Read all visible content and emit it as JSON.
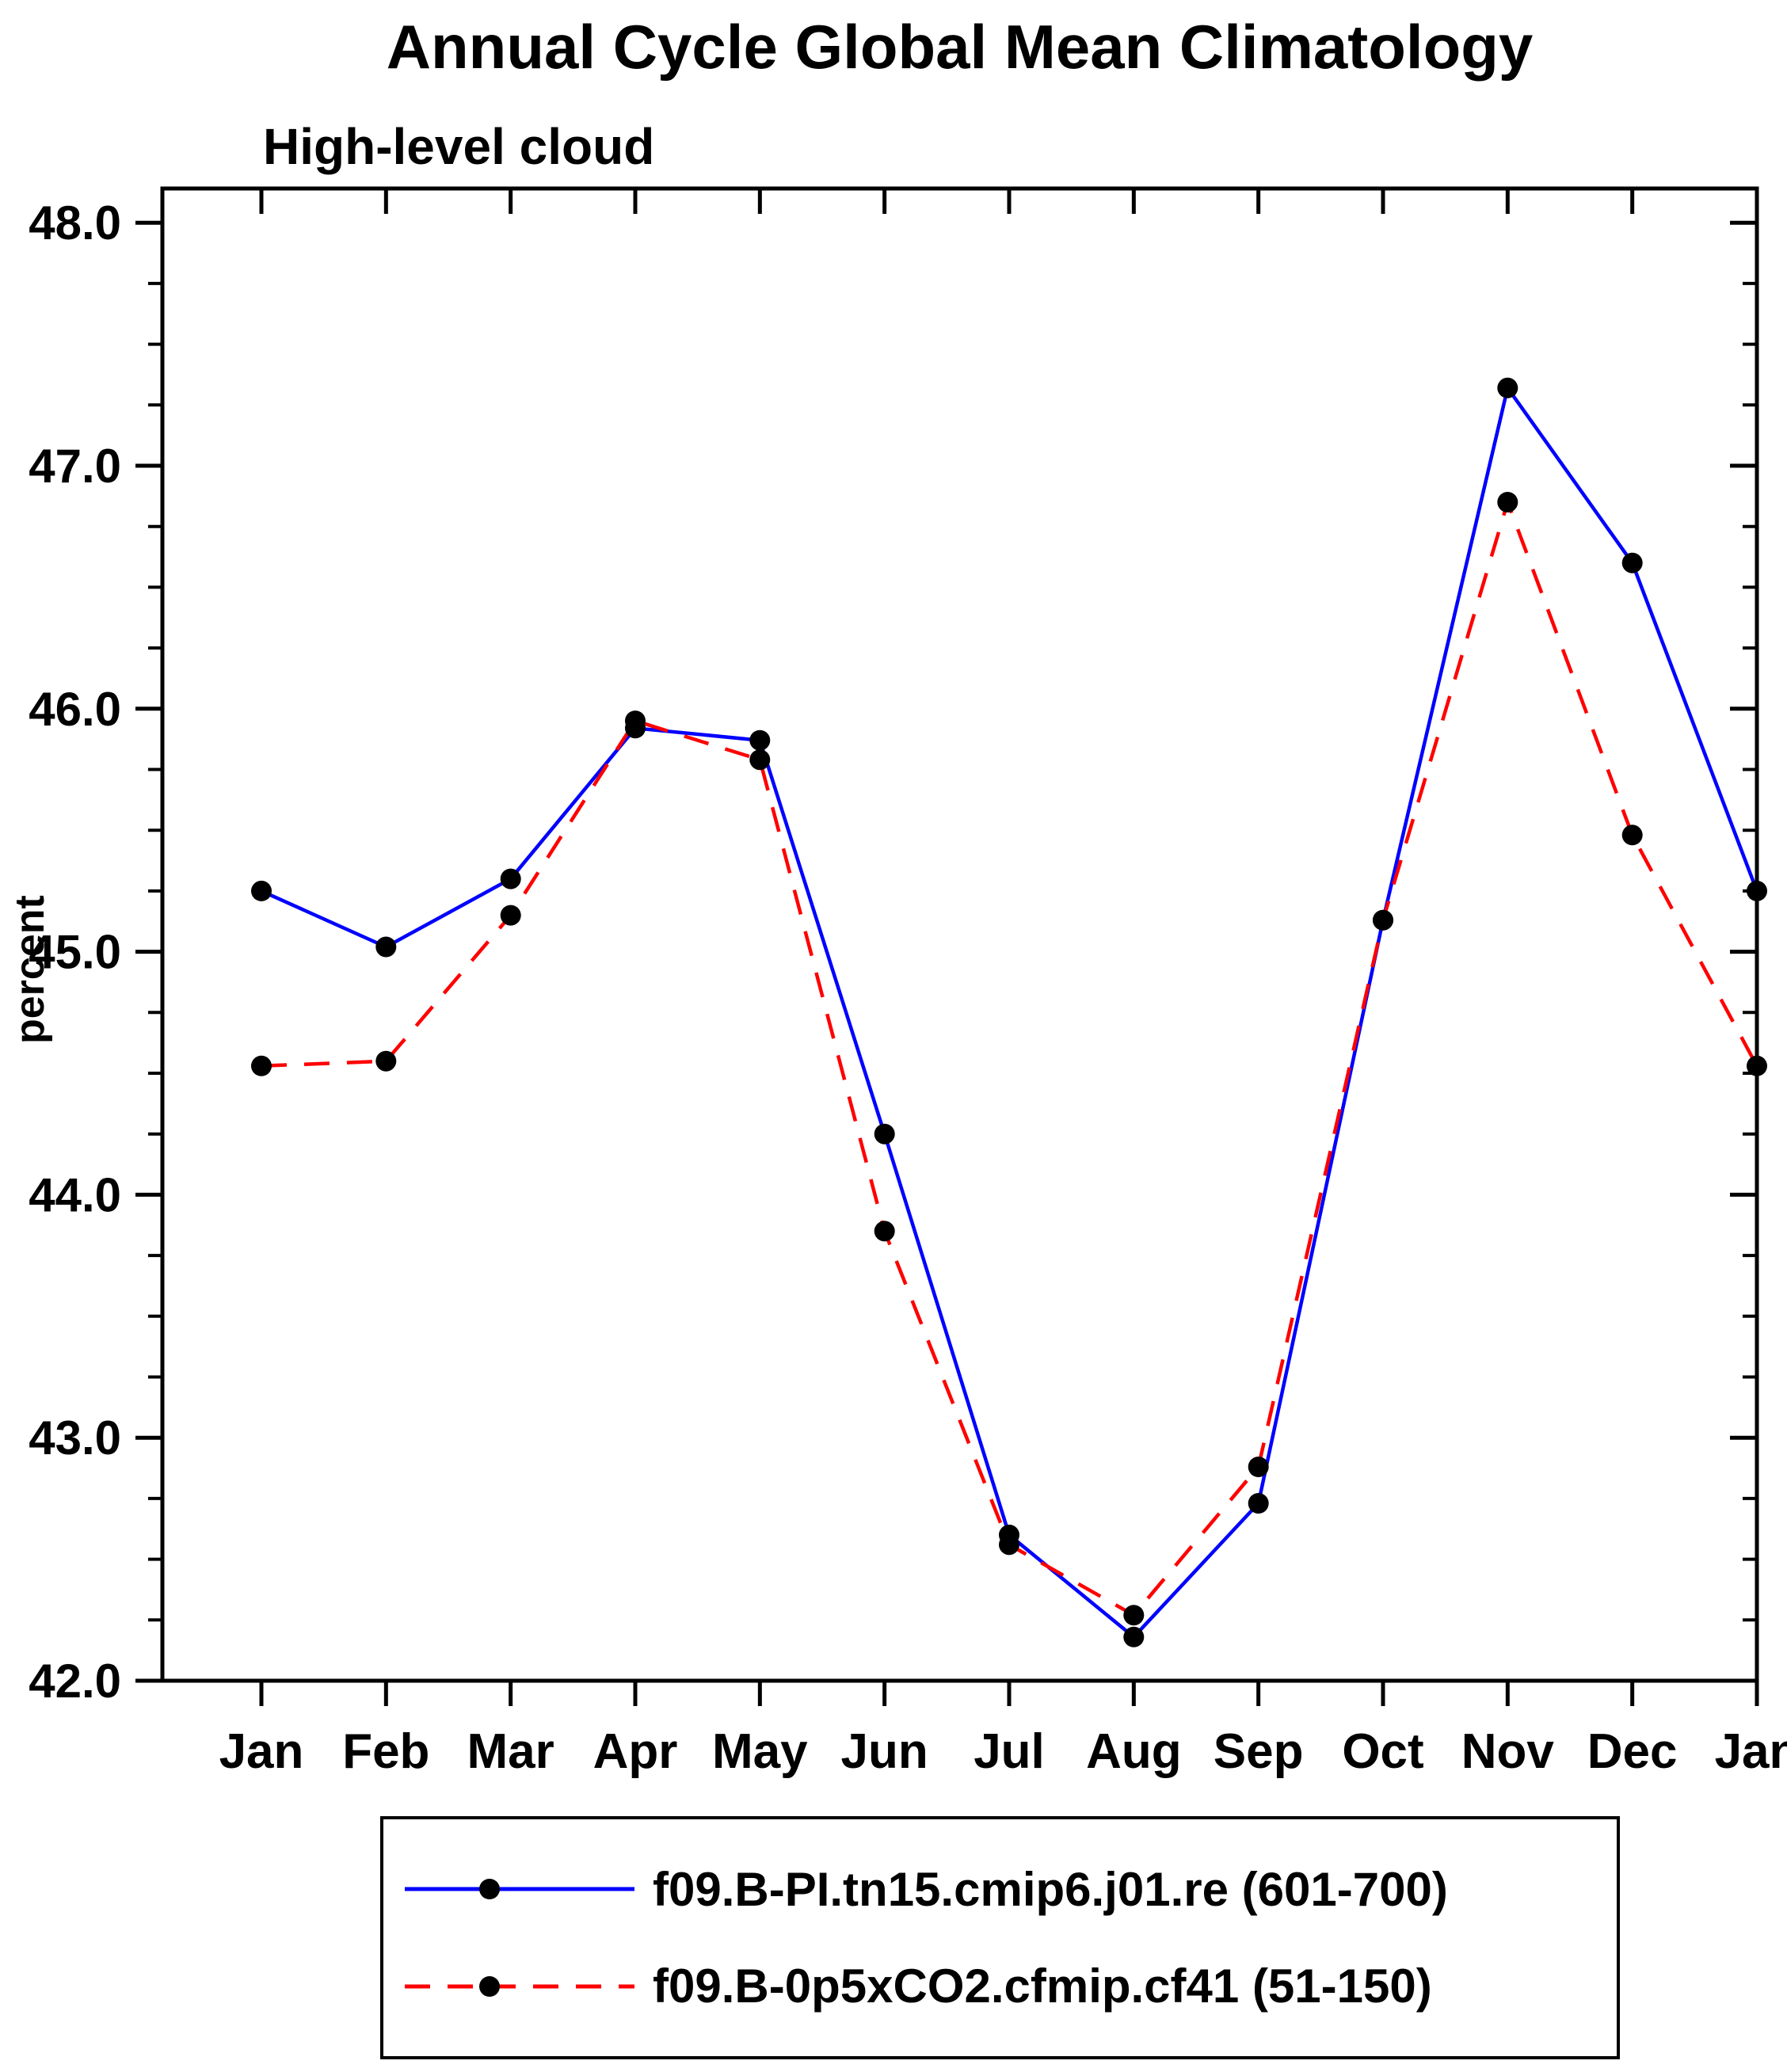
{
  "page": {
    "background": "#ffffff"
  },
  "chart_data": {
    "type": "line",
    "title": "Annual Cycle Global Mean Climatology",
    "subtitle": "High-level cloud",
    "ylabel": "percent",
    "xlabel": "",
    "ylim": [
      42.0,
      48.0
    ],
    "ytick_interval": 1.0,
    "ytick_minor_interval": 0.25,
    "ytick_labels": [
      "42.0",
      "43.0",
      "44.0",
      "45.0",
      "46.0",
      "47.0",
      "48.0"
    ],
    "categories": [
      "Jan",
      "Feb",
      "Mar",
      "Apr",
      "May",
      "Jun",
      "Jul",
      "Aug",
      "Sep",
      "Oct",
      "Nov",
      "Dec",
      "Jan"
    ],
    "grid": false,
    "legend_position": "bottom",
    "axis_color": "#000000",
    "marker": {
      "shape": "circle",
      "color": "#000000"
    },
    "series": [
      {
        "name": "f09.B-PI.tn15.cmip6.j01.re (601-700)",
        "color": "#0000ff",
        "line_style": "solid",
        "values": [
          45.25,
          45.02,
          45.3,
          45.92,
          45.87,
          44.25,
          42.6,
          42.18,
          42.73,
          45.13,
          47.32,
          46.6,
          45.25
        ]
      },
      {
        "name": "f09.B-0p5xCO2.cfmip.cf41 (51-150)",
        "color": "#ff0000",
        "line_style": "dashed",
        "values": [
          44.53,
          44.55,
          45.15,
          45.95,
          45.79,
          43.85,
          42.56,
          42.27,
          42.88,
          45.13,
          46.85,
          45.48,
          44.53
        ]
      }
    ]
  }
}
